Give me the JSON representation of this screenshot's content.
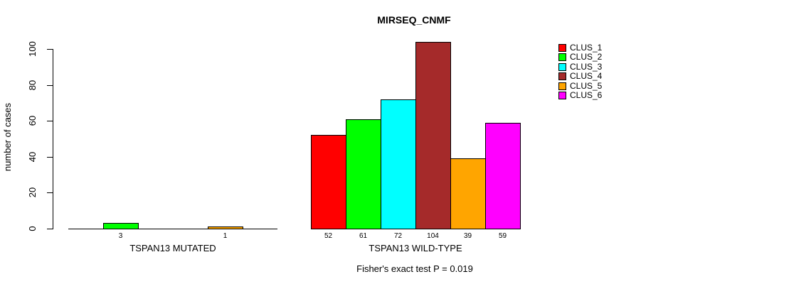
{
  "chart_data": {
    "type": "bar",
    "title": "MIRSEQ_CNMF",
    "ylabel": "number of cases",
    "xlabel": "",
    "categories": [
      "TSPAN13 MUTATED",
      "TSPAN13 WILD-TYPE"
    ],
    "ylim": [
      0,
      100
    ],
    "yticks": [
      0,
      20,
      40,
      60,
      80,
      100
    ],
    "grid": false,
    "legend_position": "right-top",
    "series": [
      {
        "name": "CLUS_1",
        "color": "#FF0000",
        "values": [
          0,
          52
        ]
      },
      {
        "name": "CLUS_2",
        "color": "#00FF00",
        "values": [
          3,
          61
        ]
      },
      {
        "name": "CLUS_3",
        "color": "#00FFFF",
        "values": [
          0,
          72
        ]
      },
      {
        "name": "CLUS_4",
        "color": "#A52A2A",
        "values": [
          0,
          104
        ]
      },
      {
        "name": "CLUS_5",
        "color": "#FFA500",
        "values": [
          1,
          39
        ]
      },
      {
        "name": "CLUS_6",
        "color": "#FF00FF",
        "values": [
          0,
          59
        ]
      }
    ],
    "bar_value_labels": {
      "show_zero": false
    },
    "annotation": "Fisher's exact test P = 0.019"
  },
  "colors": {
    "background": "#FFFFFF",
    "axis": "#000000",
    "text": "#000000",
    "bar_border": "#000000"
  }
}
